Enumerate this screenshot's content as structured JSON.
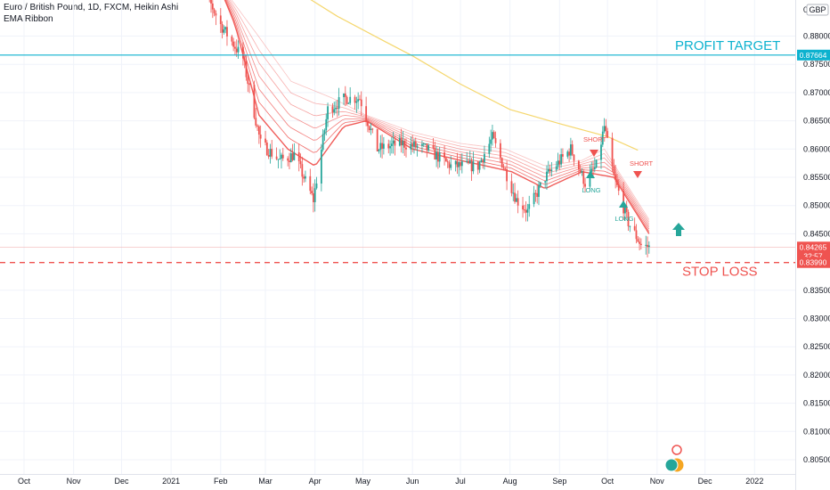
{
  "header": {
    "title": "Euro / British Pound, 1D, FXCM, Heikin Ashi",
    "indicator": "EMA Ribbon"
  },
  "colors": {
    "up": "#26a69a",
    "down": "#ef5350",
    "ribbon": "#ef5350",
    "ma": "#f5d76e",
    "target": "#0db2cf",
    "stop": "#ef5350",
    "grid": "#f0f3fa",
    "axis_text": "#131722"
  },
  "annotations": {
    "profit_target": "PROFIT TARGET",
    "stop_loss": "STOP LOSS",
    "short_1": "SHORT",
    "short_2": "SHORT",
    "long_1": "LONG",
    "long_2": "LONG"
  },
  "price_axis": {
    "top_label": "0",
    "currency": "GBP",
    "last_price": "0.84265",
    "countdown": "32:57",
    "target_price": "0.87664",
    "stop_price": "0.83990"
  },
  "chart_data": {
    "type": "candlestick",
    "title": "Euro / British Pound, 1D, FXCM, Heikin Ashi",
    "indicator": "EMA Ribbon",
    "x_tick_labels": [
      "Oct",
      "Nov",
      "Dec",
      "2021",
      "Feb",
      "Mar",
      "Apr",
      "May",
      "Jun",
      "Jul",
      "Aug",
      "Sep",
      "Oct",
      "Nov",
      "Dec",
      "2022"
    ],
    "y_ticks": [
      0.88,
      0.875,
      0.87,
      0.865,
      0.86,
      0.855,
      0.85,
      0.845,
      0.835,
      0.83,
      0.825,
      0.82,
      0.815,
      0.81,
      0.805
    ],
    "ylim": [
      0.8035,
      0.8915
    ],
    "grid": true,
    "price_path": [
      [
        "2021-01-13",
        0.893
      ],
      [
        "2021-01-22",
        0.888
      ],
      [
        "2021-02-01",
        0.882
      ],
      [
        "2021-02-15",
        0.876
      ],
      [
        "2021-02-26",
        0.861
      ],
      [
        "2021-03-10",
        0.858
      ],
      [
        "2021-03-19",
        0.859
      ],
      [
        "2021-03-31",
        0.851
      ],
      [
        "2021-04-09",
        0.867
      ],
      [
        "2021-04-20",
        0.869
      ],
      [
        "2021-04-29",
        0.869
      ],
      [
        "2021-05-10",
        0.86
      ],
      [
        "2021-05-25",
        0.861
      ],
      [
        "2021-06-10",
        0.86
      ],
      [
        "2021-06-25",
        0.857
      ],
      [
        "2021-07-12",
        0.857
      ],
      [
        "2021-07-21",
        0.862
      ],
      [
        "2021-08-05",
        0.851
      ],
      [
        "2021-08-12",
        0.849
      ],
      [
        "2021-08-23",
        0.855
      ],
      [
        "2021-09-08",
        0.86
      ],
      [
        "2021-09-17",
        0.854
      ],
      [
        "2021-09-24",
        0.857
      ],
      [
        "2021-09-29",
        0.864
      ],
      [
        "2021-10-05",
        0.855
      ],
      [
        "2021-10-14",
        0.847
      ],
      [
        "2021-10-22",
        0.843
      ],
      [
        "2021-10-27",
        0.8426
      ]
    ],
    "ema_ribbon": {
      "upper": [
        [
          "2021-01-18",
          0.893
        ],
        [
          "2021-02-01",
          0.889
        ],
        [
          "2021-02-22",
          0.881
        ],
        [
          "2021-03-17",
          0.872
        ],
        [
          "2021-04-12",
          0.869
        ],
        [
          "2021-05-03",
          0.866
        ],
        [
          "2021-06-01",
          0.863
        ],
        [
          "2021-07-01",
          0.861
        ],
        [
          "2021-07-29",
          0.86
        ],
        [
          "2021-08-23",
          0.857
        ],
        [
          "2021-09-15",
          0.858
        ],
        [
          "2021-09-29",
          0.86
        ],
        [
          "2021-10-27",
          0.8475
        ]
      ],
      "lower": [
        [
          "2021-01-25",
          0.893
        ],
        [
          "2021-02-10",
          0.882
        ],
        [
          "2021-02-25",
          0.866
        ],
        [
          "2021-03-15",
          0.86
        ],
        [
          "2021-04-01",
          0.857
        ],
        [
          "2021-04-19",
          0.864
        ],
        [
          "2021-05-03",
          0.865
        ],
        [
          "2021-06-01",
          0.86
        ],
        [
          "2021-07-01",
          0.858
        ],
        [
          "2021-08-02",
          0.856
        ],
        [
          "2021-08-23",
          0.853
        ],
        [
          "2021-09-15",
          0.856
        ],
        [
          "2021-10-05",
          0.855
        ],
        [
          "2021-10-27",
          0.845
        ]
      ]
    },
    "ma_200": [
      [
        "2021-02-28",
        0.893
      ],
      [
        "2021-03-15",
        0.889
      ],
      [
        "2021-04-15",
        0.8835
      ],
      [
        "2021-05-15",
        0.879
      ],
      [
        "2021-06-01",
        0.8765
      ],
      [
        "2021-07-01",
        0.8715
      ],
      [
        "2021-08-01",
        0.867
      ],
      [
        "2021-09-01",
        0.8645
      ],
      [
        "2021-10-01",
        0.8622
      ],
      [
        "2021-10-20",
        0.8598
      ]
    ],
    "horizontal_lines": [
      {
        "label": "PROFIT TARGET",
        "value": 0.87664
      },
      {
        "label": "STOP LOSS",
        "value": 0.8399
      }
    ],
    "signals": [
      {
        "label": "SHORT",
        "date": "2021-09-14",
        "direction": "down"
      },
      {
        "label": "LONG",
        "date": "2021-09-10",
        "direction": "up"
      },
      {
        "label": "LONG",
        "date": "2021-09-27",
        "direction": "up"
      },
      {
        "label": "SHORT",
        "date": "2021-10-06",
        "direction": "down"
      },
      {
        "label": "",
        "date": "2021-11-01",
        "direction": "up"
      }
    ],
    "last_price": 0.84265
  }
}
